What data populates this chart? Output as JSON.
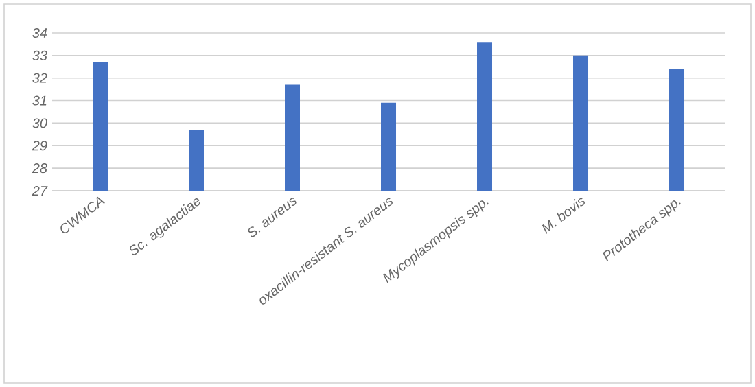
{
  "chart_data": {
    "type": "bar",
    "categories": [
      "CWMCA",
      "*Sc. agalactiae*",
      "*S. aureus*",
      "*oxacillin-resistant S. aureus*",
      "*Mycoplasmopsis spp.*",
      "*M. bovis*",
      "*Prototheca spp.*"
    ],
    "values": [
      32.7,
      29.7,
      31.7,
      30.9,
      33.6,
      33.0,
      32.4
    ],
    "color": "#4472c4",
    "ylim": [
      27,
      34
    ],
    "yticks": [
      27,
      28,
      29,
      30,
      31,
      32,
      33,
      34
    ],
    "grid": "y"
  }
}
